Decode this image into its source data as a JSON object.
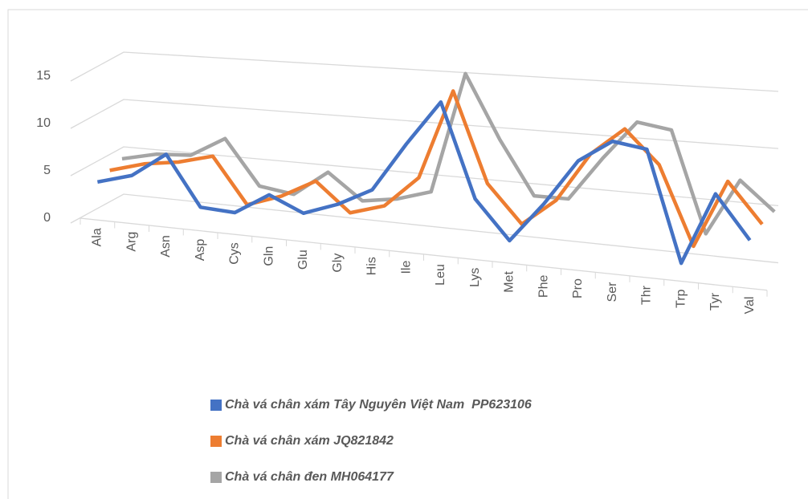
{
  "chart_data": {
    "type": "line",
    "categories": [
      "Ala",
      "Arg",
      "Asn",
      "Asp",
      "Cys",
      "Gln",
      "Glu",
      "Gly",
      "His",
      "Ile",
      "Leu",
      "Lys",
      "Met",
      "Phe",
      "Pro",
      "Ser",
      "Thr",
      "Trp",
      "Tyr",
      "Val"
    ],
    "series": [
      {
        "name": "Chà vá chân xám Tây Nguyên Việt Nam  PP623106",
        "color": "#4472c4",
        "values": [
          4,
          5,
          7.5,
          2.4,
          2.2,
          4.3,
          2.8,
          4,
          5.7,
          10.4,
          14.6,
          5.7,
          2.1,
          5.8,
          10,
          12,
          11.5,
          1.6,
          8,
          4.2
        ]
      },
      {
        "name": "Chà vá chân xám JQ821842",
        "color": "#ed7d31",
        "values": [
          4.5,
          5.5,
          6,
          6.9,
          2.3,
          3.5,
          5.3,
          2.5,
          3.5,
          6.5,
          15,
          6.5,
          3,
          5.5,
          10,
          12.5,
          9.5,
          2.5,
          8.5,
          5
        ]
      },
      {
        "name": "Chà vá chân đen MH064177",
        "color": "#a5a5a5",
        "values": [
          5,
          5.8,
          6,
          8,
          3.5,
          3,
          5.5,
          3,
          3.5,
          4.5,
          16,
          10,
          5,
          5,
          9,
          12.5,
          12,
          3,
          8,
          5.5
        ]
      }
    ],
    "ylim": [
      0,
      15
    ],
    "yticks": [
      0,
      5,
      10,
      15
    ],
    "grid": true
  }
}
